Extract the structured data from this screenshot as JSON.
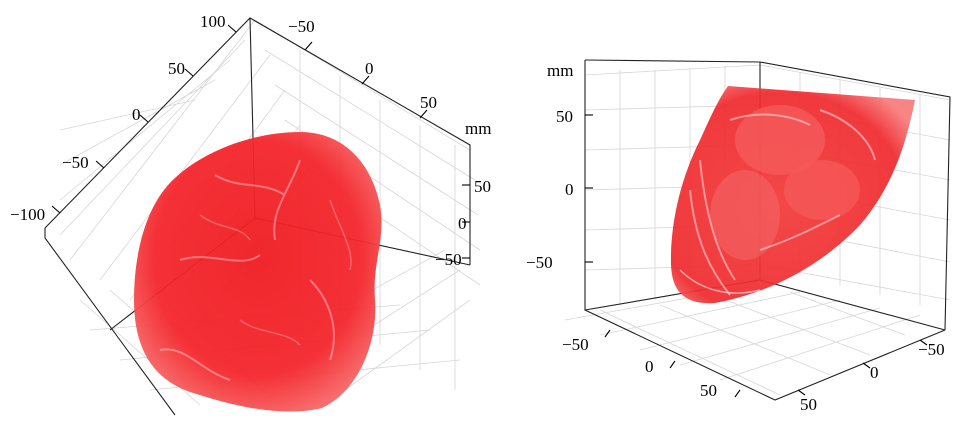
{
  "left_panel": {
    "axis_a_ticks": [
      "100",
      "50",
      "0",
      "−50",
      "−100"
    ],
    "axis_b_ticks": [
      "−50",
      "0",
      "50"
    ],
    "axis_b_unit": "mm",
    "axis_c_ticks": [
      "50",
      "0",
      "−50"
    ],
    "object_color": "#ff2b2b"
  },
  "right_panel": {
    "axis_vertical_unit": "mm",
    "axis_vertical_ticks": [
      "50",
      "0",
      "−50"
    ],
    "axis_front_ticks": [
      "−50",
      "0",
      "50"
    ],
    "axis_side_ticks": [
      "−50",
      "0",
      "50"
    ],
    "object_color": "#ff2b2b"
  }
}
